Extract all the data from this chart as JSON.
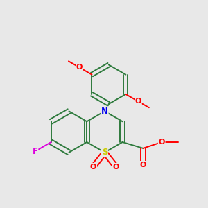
{
  "background_color": "#e8e8e8",
  "bond_color": "#2d7a3c",
  "atom_colors": {
    "N": "#0000ee",
    "S": "#cccc00",
    "O": "#ff0000",
    "F": "#dd00dd",
    "C": "#2d7a3c"
  },
  "bond_width": 1.4,
  "dbl_off": 0.012,
  "font_size": 8.5
}
